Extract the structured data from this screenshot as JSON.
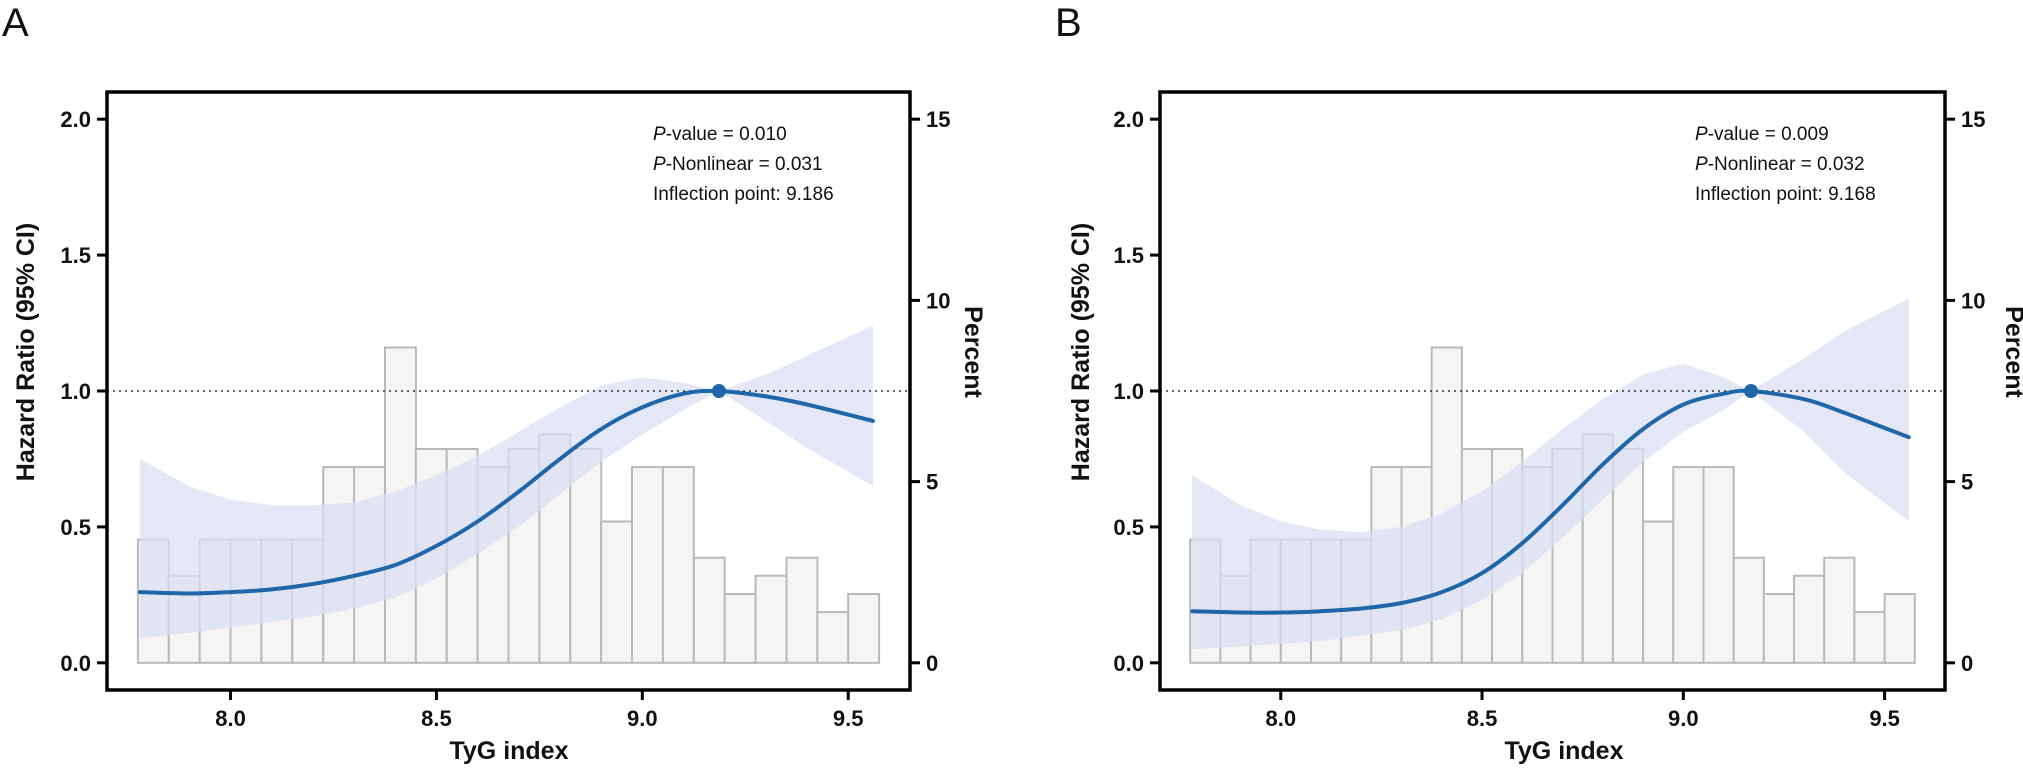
{
  "chart_data": [
    {
      "type": "line",
      "panel_label": "A",
      "xlabel": "TyG index",
      "ylabel": "Hazard Ratio (95% CI)",
      "y2label": "Percent",
      "xlim": [
        7.7,
        9.65
      ],
      "ylim": [
        -0.1,
        2.1
      ],
      "y2lim": [
        0,
        15
      ],
      "xticks": [
        "8.0",
        "8.5",
        "9.0",
        "9.5"
      ],
      "yticks": [
        "0.0",
        "0.5",
        "1.0",
        "1.5",
        "2.0"
      ],
      "y2ticks": [
        "0",
        "5",
        "10",
        "15"
      ],
      "reference_line_y": 1.0,
      "annotations": [
        {
          "italic": "P",
          "text": "-value = 0.010"
        },
        {
          "italic": "P",
          "text": "-Nonlinear = 0.031"
        },
        {
          "italic": "",
          "text": "Inflection point: 9.186"
        }
      ],
      "inflection_point": {
        "x": 9.186,
        "y": 1.0
      },
      "histogram": {
        "bins_x_start": [
          7.775,
          7.85,
          7.925,
          8.0,
          8.075,
          8.15,
          8.225,
          8.3,
          8.375,
          8.45,
          8.525,
          8.6,
          8.675,
          8.75,
          8.825,
          8.9,
          8.975,
          9.05,
          9.125,
          9.2,
          9.275,
          9.35,
          9.425,
          9.5
        ],
        "bin_width": 0.075,
        "percent": [
          3.4,
          2.4,
          3.4,
          3.4,
          3.4,
          3.4,
          5.4,
          5.4,
          8.7,
          5.9,
          5.9,
          5.4,
          5.9,
          6.3,
          5.9,
          3.9,
          5.4,
          5.4,
          2.9,
          1.9,
          2.4,
          2.9,
          1.4,
          1.9
        ]
      },
      "series": [
        {
          "name": "HR",
          "x": [
            7.78,
            7.9,
            8.0,
            8.1,
            8.2,
            8.3,
            8.4,
            8.5,
            8.6,
            8.7,
            8.8,
            8.9,
            9.0,
            9.1,
            9.186,
            9.3,
            9.4,
            9.56
          ],
          "y": [
            0.26,
            0.255,
            0.26,
            0.27,
            0.29,
            0.32,
            0.36,
            0.43,
            0.52,
            0.63,
            0.75,
            0.86,
            0.94,
            0.99,
            1.0,
            0.98,
            0.95,
            0.89
          ]
        },
        {
          "name": "95% CI lower",
          "x": [
            7.78,
            7.9,
            8.0,
            8.1,
            8.2,
            8.3,
            8.4,
            8.5,
            8.6,
            8.7,
            8.8,
            8.9,
            9.0,
            9.1,
            9.186,
            9.3,
            9.4,
            9.56
          ],
          "y": [
            0.09,
            0.11,
            0.13,
            0.15,
            0.17,
            0.2,
            0.24,
            0.31,
            0.4,
            0.5,
            0.62,
            0.74,
            0.84,
            0.93,
            1.0,
            0.89,
            0.79,
            0.65
          ]
        },
        {
          "name": "95% CI upper",
          "x": [
            7.78,
            7.9,
            8.0,
            8.1,
            8.2,
            8.3,
            8.4,
            8.5,
            8.6,
            8.7,
            8.8,
            8.9,
            9.0,
            9.1,
            9.186,
            9.3,
            9.4,
            9.56
          ],
          "y": [
            0.75,
            0.65,
            0.6,
            0.58,
            0.58,
            0.59,
            0.63,
            0.69,
            0.76,
            0.85,
            0.94,
            1.02,
            1.05,
            1.03,
            1.0,
            1.06,
            1.13,
            1.24
          ]
        }
      ]
    },
    {
      "type": "line",
      "panel_label": "B",
      "xlabel": "TyG index",
      "ylabel": "Hazard Ratio (95% CI)",
      "y2label": "Percent",
      "xlim": [
        7.7,
        9.65
      ],
      "ylim": [
        -0.1,
        2.1
      ],
      "y2lim": [
        0,
        15
      ],
      "xticks": [
        "8.0",
        "8.5",
        "9.0",
        "9.5"
      ],
      "yticks": [
        "0.0",
        "0.5",
        "1.0",
        "1.5",
        "2.0"
      ],
      "y2ticks": [
        "0",
        "5",
        "10",
        "15"
      ],
      "reference_line_y": 1.0,
      "annotations": [
        {
          "italic": "P",
          "text": "-value = 0.009"
        },
        {
          "italic": "P",
          "text": "-Nonlinear = 0.032"
        },
        {
          "italic": "",
          "text": "Inflection point: 9.168"
        }
      ],
      "inflection_point": {
        "x": 9.168,
        "y": 1.0
      },
      "histogram": {
        "bins_x_start": [
          7.775,
          7.85,
          7.925,
          8.0,
          8.075,
          8.15,
          8.225,
          8.3,
          8.375,
          8.45,
          8.525,
          8.6,
          8.675,
          8.75,
          8.825,
          8.9,
          8.975,
          9.05,
          9.125,
          9.2,
          9.275,
          9.35,
          9.425,
          9.5
        ],
        "bin_width": 0.075,
        "percent": [
          3.4,
          2.4,
          3.4,
          3.4,
          3.4,
          3.4,
          5.4,
          5.4,
          8.7,
          5.9,
          5.9,
          5.4,
          5.9,
          6.3,
          5.9,
          3.9,
          5.4,
          5.4,
          2.9,
          1.9,
          2.4,
          2.9,
          1.4,
          1.9
        ]
      },
      "series": [
        {
          "name": "HR",
          "x": [
            7.78,
            7.9,
            8.0,
            8.1,
            8.2,
            8.3,
            8.4,
            8.5,
            8.6,
            8.7,
            8.8,
            8.9,
            9.0,
            9.1,
            9.168,
            9.3,
            9.4,
            9.56
          ],
          "y": [
            0.19,
            0.185,
            0.185,
            0.19,
            0.2,
            0.22,
            0.26,
            0.33,
            0.44,
            0.58,
            0.73,
            0.86,
            0.95,
            0.99,
            1.0,
            0.97,
            0.92,
            0.83
          ]
        },
        {
          "name": "95% CI lower",
          "x": [
            7.78,
            7.9,
            8.0,
            8.1,
            8.2,
            8.3,
            8.4,
            8.5,
            8.6,
            8.7,
            8.8,
            8.9,
            9.0,
            9.1,
            9.168,
            9.3,
            9.4,
            9.56
          ],
          "y": [
            0.05,
            0.06,
            0.07,
            0.08,
            0.1,
            0.12,
            0.16,
            0.23,
            0.33,
            0.46,
            0.6,
            0.74,
            0.85,
            0.93,
            1.0,
            0.85,
            0.7,
            0.52
          ]
        },
        {
          "name": "95% CI upper",
          "x": [
            7.78,
            7.9,
            8.0,
            8.1,
            8.2,
            8.3,
            8.4,
            8.5,
            8.6,
            8.7,
            8.8,
            8.9,
            9.0,
            9.1,
            9.168,
            9.3,
            9.4,
            9.56
          ],
          "y": [
            0.69,
            0.58,
            0.52,
            0.49,
            0.48,
            0.5,
            0.55,
            0.63,
            0.74,
            0.86,
            0.97,
            1.06,
            1.1,
            1.05,
            1.0,
            1.12,
            1.22,
            1.34
          ]
        }
      ]
    }
  ],
  "colors": {
    "curve": "#1f67a8",
    "ci_band": "#d9dff3",
    "hist_fill": "#f6f5f3",
    "hist_stroke": "#b9b9b9",
    "axis": "#000000",
    "reference_line": "#333333"
  }
}
